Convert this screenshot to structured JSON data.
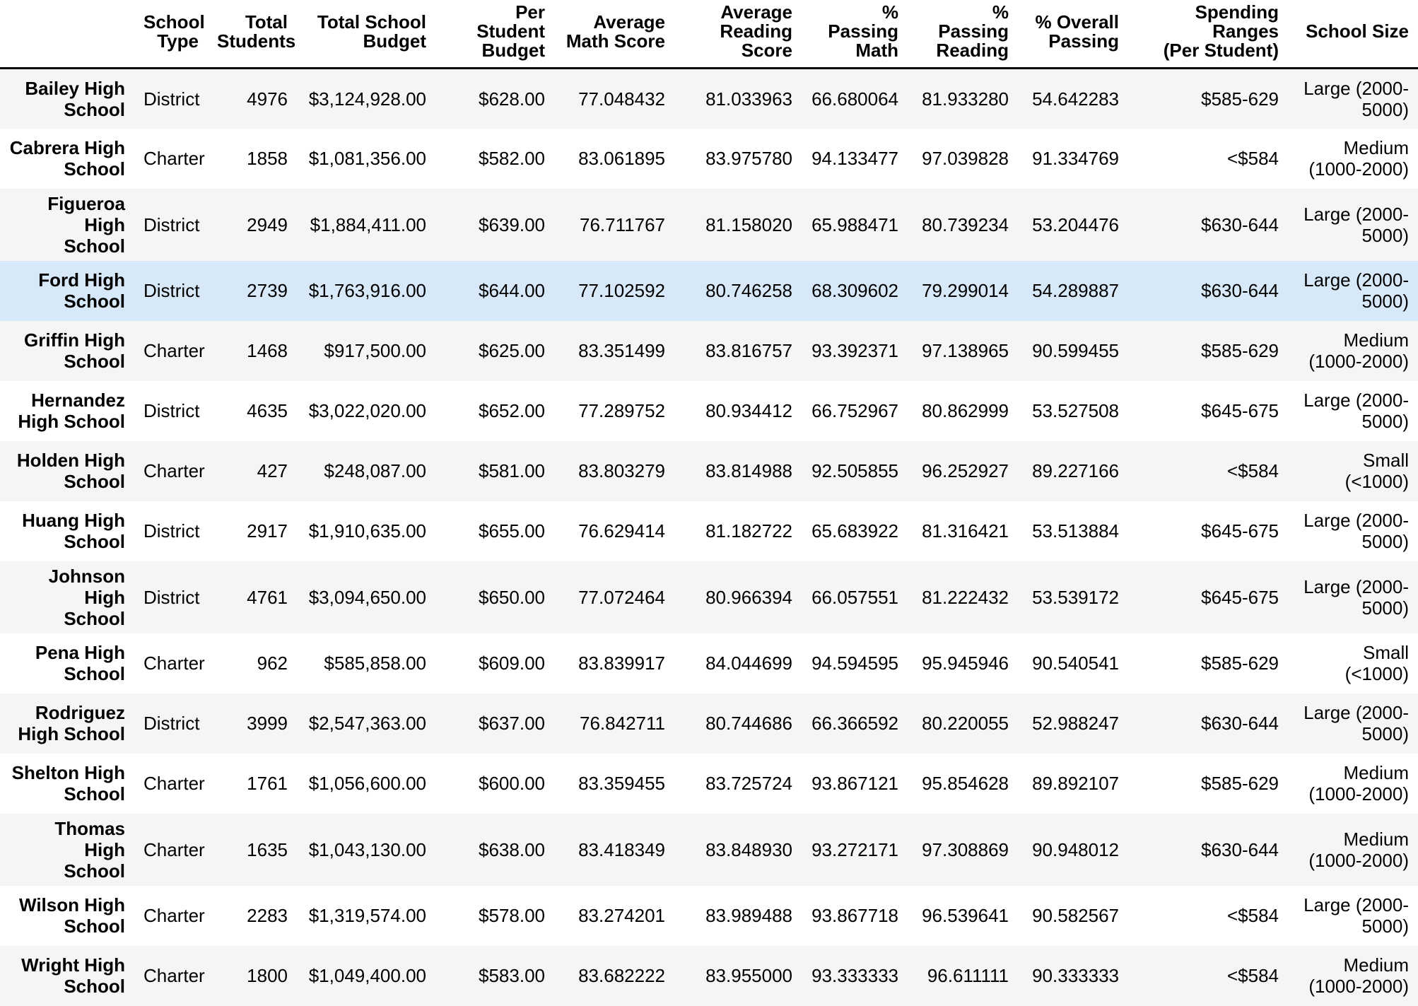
{
  "colors": {
    "background": "#ffffff",
    "text": "#000000",
    "stripe_row": "#f5f5f5",
    "highlight_row": "#d7e9f9",
    "header_border": "#000000"
  },
  "chart_data": {
    "type": "table",
    "index_column_label": "",
    "columns": [
      "School\nType",
      "Total\nStudents",
      "Total School\nBudget",
      "Per Student\nBudget",
      "Average\nMath Score",
      "Average\nReading\nScore",
      "%\nPassing\nMath",
      "% Passing\nReading",
      "% Overall\nPassing",
      "Spending Ranges\n(Per Student)",
      "School Size"
    ],
    "rows": [
      {
        "school": "Bailey High\nSchool",
        "highlighted": false,
        "values": [
          "District",
          "4976",
          "$3,124,928.00",
          "$628.00",
          "77.048432",
          "81.033963",
          "66.680064",
          "81.933280",
          "54.642283",
          "$585-629",
          "Large (2000-\n5000)"
        ]
      },
      {
        "school": "Cabrera High\nSchool",
        "highlighted": false,
        "values": [
          "Charter",
          "1858",
          "$1,081,356.00",
          "$582.00",
          "83.061895",
          "83.975780",
          "94.133477",
          "97.039828",
          "91.334769",
          "<$584",
          "Medium\n(1000-2000)"
        ]
      },
      {
        "school": "Figueroa High\nSchool",
        "highlighted": false,
        "values": [
          "District",
          "2949",
          "$1,884,411.00",
          "$639.00",
          "76.711767",
          "81.158020",
          "65.988471",
          "80.739234",
          "53.204476",
          "$630-644",
          "Large (2000-\n5000)"
        ]
      },
      {
        "school": "Ford High\nSchool",
        "highlighted": true,
        "values": [
          "District",
          "2739",
          "$1,763,916.00",
          "$644.00",
          "77.102592",
          "80.746258",
          "68.309602",
          "79.299014",
          "54.289887",
          "$630-644",
          "Large (2000-\n5000)"
        ]
      },
      {
        "school": "Griffin High\nSchool",
        "highlighted": false,
        "values": [
          "Charter",
          "1468",
          "$917,500.00",
          "$625.00",
          "83.351499",
          "83.816757",
          "93.392371",
          "97.138965",
          "90.599455",
          "$585-629",
          "Medium\n(1000-2000)"
        ]
      },
      {
        "school": "Hernandez\nHigh School",
        "highlighted": false,
        "values": [
          "District",
          "4635",
          "$3,022,020.00",
          "$652.00",
          "77.289752",
          "80.934412",
          "66.752967",
          "80.862999",
          "53.527508",
          "$645-675",
          "Large (2000-\n5000)"
        ]
      },
      {
        "school": "Holden High\nSchool",
        "highlighted": false,
        "values": [
          "Charter",
          "427",
          "$248,087.00",
          "$581.00",
          "83.803279",
          "83.814988",
          "92.505855",
          "96.252927",
          "89.227166",
          "<$584",
          "Small\n(<1000)"
        ]
      },
      {
        "school": "Huang High\nSchool",
        "highlighted": false,
        "values": [
          "District",
          "2917",
          "$1,910,635.00",
          "$655.00",
          "76.629414",
          "81.182722",
          "65.683922",
          "81.316421",
          "53.513884",
          "$645-675",
          "Large (2000-\n5000)"
        ]
      },
      {
        "school": "Johnson High\nSchool",
        "highlighted": false,
        "values": [
          "District",
          "4761",
          "$3,094,650.00",
          "$650.00",
          "77.072464",
          "80.966394",
          "66.057551",
          "81.222432",
          "53.539172",
          "$645-675",
          "Large (2000-\n5000)"
        ]
      },
      {
        "school": "Pena High\nSchool",
        "highlighted": false,
        "values": [
          "Charter",
          "962",
          "$585,858.00",
          "$609.00",
          "83.839917",
          "84.044699",
          "94.594595",
          "95.945946",
          "90.540541",
          "$585-629",
          "Small\n(<1000)"
        ]
      },
      {
        "school": "Rodriguez\nHigh School",
        "highlighted": false,
        "values": [
          "District",
          "3999",
          "$2,547,363.00",
          "$637.00",
          "76.842711",
          "80.744686",
          "66.366592",
          "80.220055",
          "52.988247",
          "$630-644",
          "Large (2000-\n5000)"
        ]
      },
      {
        "school": "Shelton High\nSchool",
        "highlighted": false,
        "values": [
          "Charter",
          "1761",
          "$1,056,600.00",
          "$600.00",
          "83.359455",
          "83.725724",
          "93.867121",
          "95.854628",
          "89.892107",
          "$585-629",
          "Medium\n(1000-2000)"
        ]
      },
      {
        "school": "Thomas High\nSchool",
        "highlighted": false,
        "values": [
          "Charter",
          "1635",
          "$1,043,130.00",
          "$638.00",
          "83.418349",
          "83.848930",
          "93.272171",
          "97.308869",
          "90.948012",
          "$630-644",
          "Medium\n(1000-2000)"
        ]
      },
      {
        "school": "Wilson High\nSchool",
        "highlighted": false,
        "values": [
          "Charter",
          "2283",
          "$1,319,574.00",
          "$578.00",
          "83.274201",
          "83.989488",
          "93.867718",
          "96.539641",
          "90.582567",
          "<$584",
          "Large (2000-\n5000)"
        ]
      },
      {
        "school": "Wright High\nSchool",
        "highlighted": false,
        "values": [
          "Charter",
          "1800",
          "$1,049,400.00",
          "$583.00",
          "83.682222",
          "83.955000",
          "93.333333",
          "96.611111",
          "90.333333",
          "<$584",
          "Medium\n(1000-2000)"
        ]
      }
    ],
    "legend": null,
    "grid": false,
    "notes": "Striped dataframe table; odd rows shaded gray; Ford High School row highlighted blue; all cells right-aligned; bold row and column headers; thick black rule under header row."
  }
}
